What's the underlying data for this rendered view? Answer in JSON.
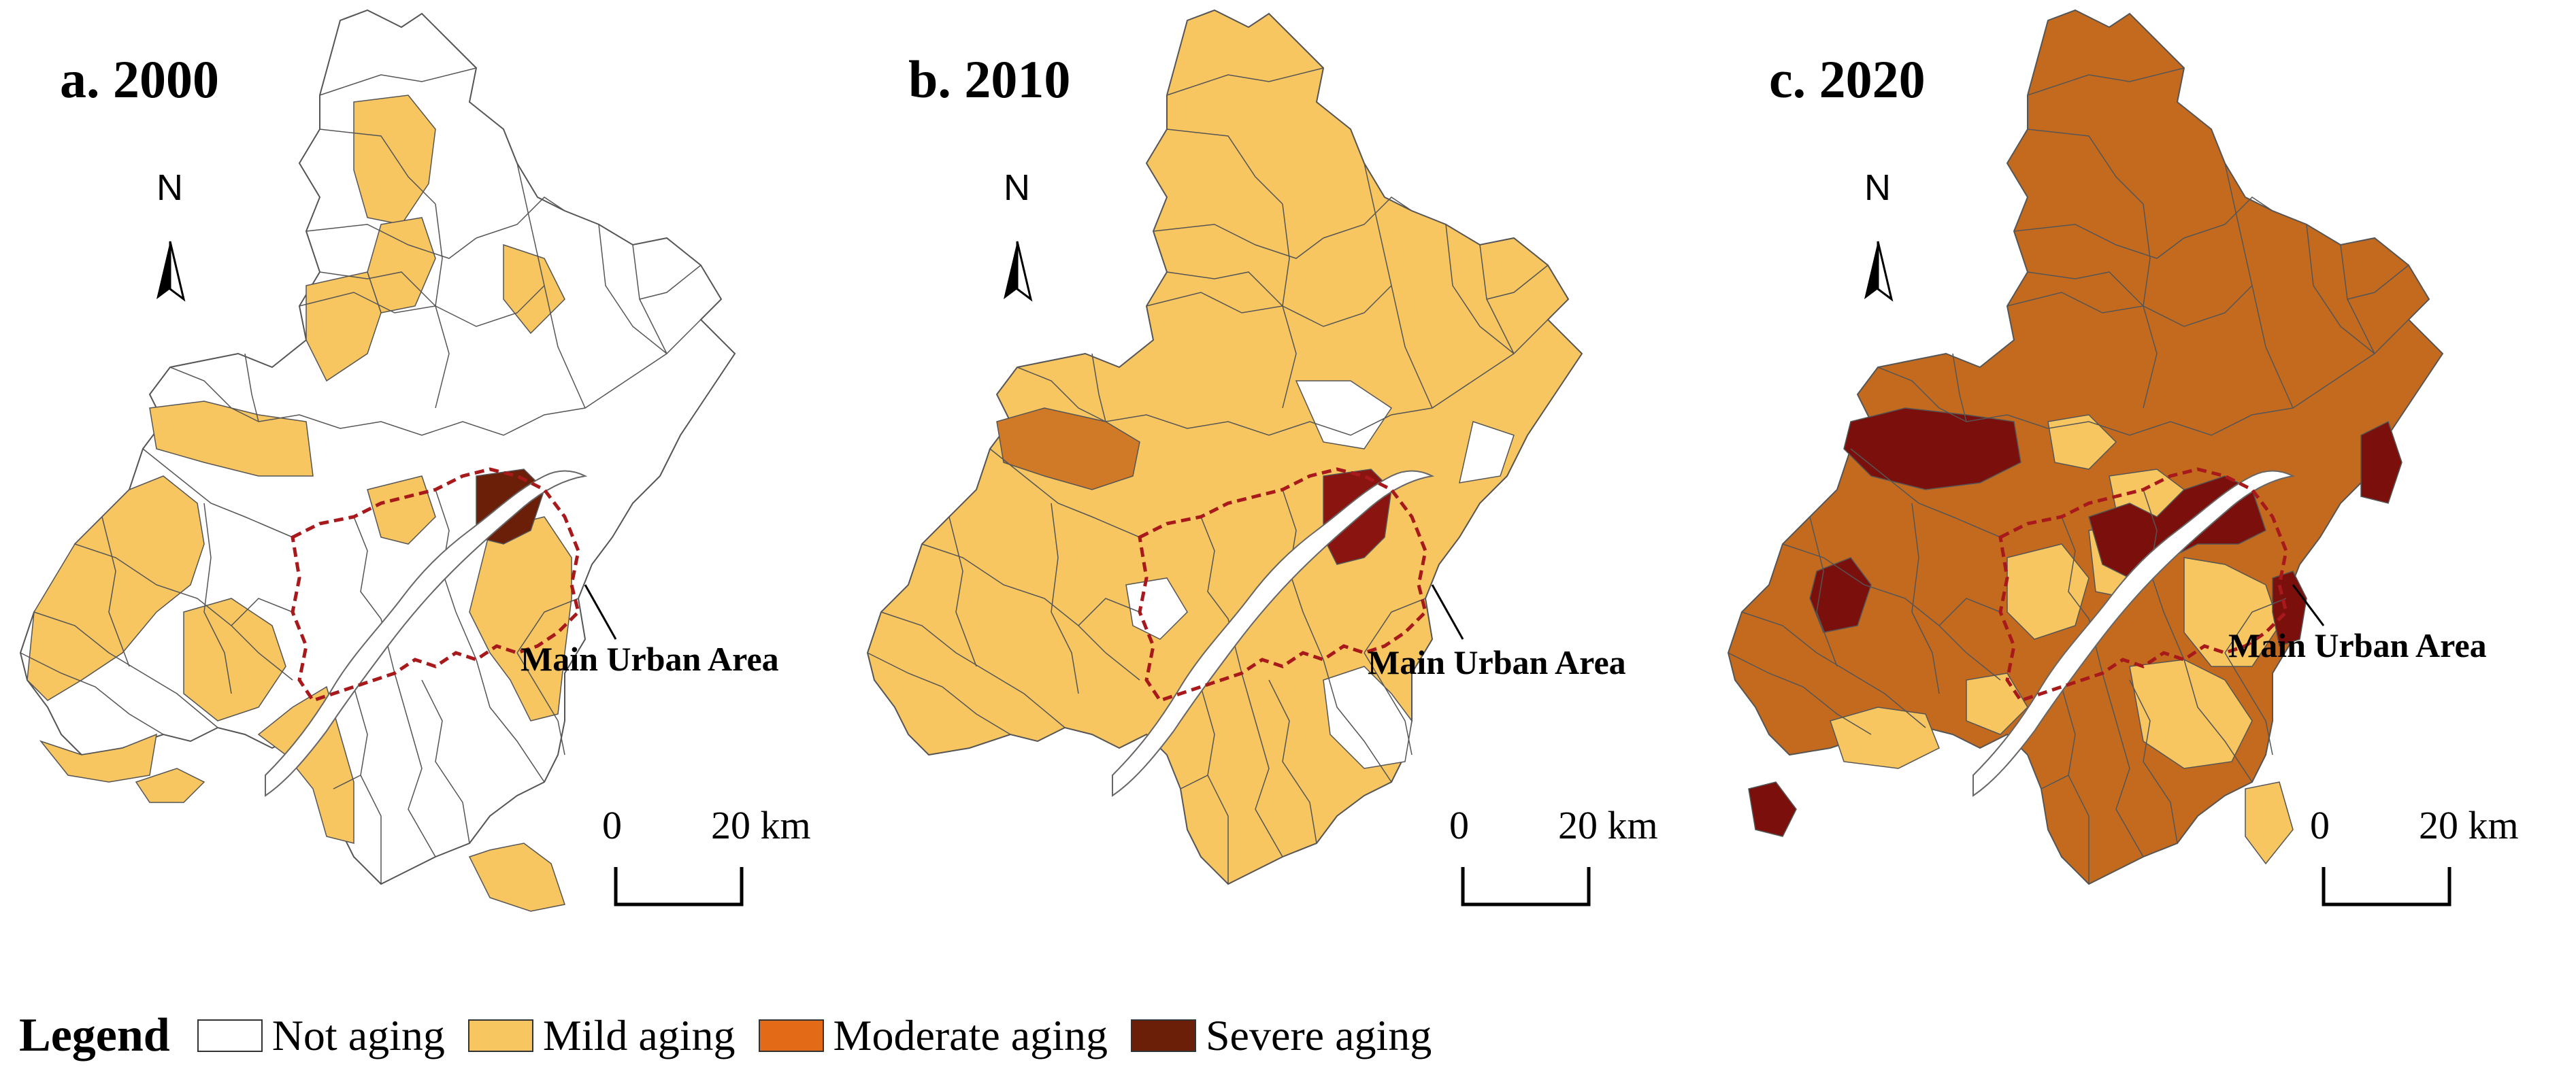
{
  "figure": {
    "panels": [
      {
        "id": "a",
        "title": "a. 2000",
        "year": 2000
      },
      {
        "id": "b",
        "title": "b. 2010",
        "year": 2010
      },
      {
        "id": "c",
        "title": "c. 2020",
        "year": 2020
      }
    ],
    "north_label": "N",
    "urban_area_label": "Main Urban Area",
    "scale_bar": {
      "start": "0",
      "end": "20 km"
    },
    "legend": {
      "title": "Legend",
      "items": [
        {
          "key": "not",
          "label": "Not aging",
          "color": "#ffffff"
        },
        {
          "key": "mild",
          "label": "Mild aging",
          "color": "#f7c660"
        },
        {
          "key": "moderate",
          "label": "Moderate aging",
          "color": "#e36a16"
        },
        {
          "key": "severe",
          "label": "Severe aging",
          "color": "#6b1f08"
        }
      ]
    },
    "map_colors": {
      "river": "#ffffff",
      "urban_boundary": "#a8191c",
      "district_line": "#555555",
      "panel_c_dominant": "#c46a1e",
      "panel_c_severe": "#7a0f0c",
      "panel_b_moderate": "#d07a28",
      "panel_b_severe": "#8a1410"
    }
  }
}
